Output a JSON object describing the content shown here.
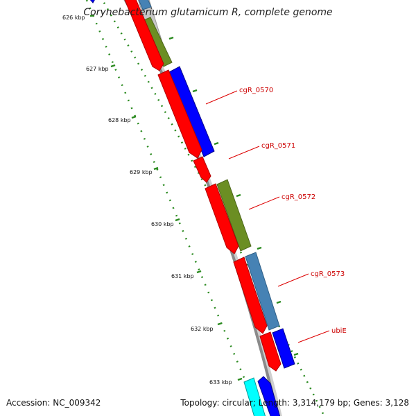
{
  "title": "Corynebacterium glutamicum R, complete genome",
  "footer": {
    "accession": "Accession: NC_009342",
    "summary": "Topology: circular; Length: 3,314,179 bp; Genes: 3,128"
  },
  "colors": {
    "backbone": "#8a8a8a",
    "tick": "#2a8a1f",
    "label_line": "#dd0000",
    "red_gene": "#ff0000",
    "blue_gene": "#0000ff",
    "olive_gene": "#6b8e23",
    "steelblue_gene": "#4682b4",
    "cyan_gene": "#00ffff",
    "gray_gene": "#c8c8c8"
  },
  "ruler": [
    {
      "label": "626 kbp"
    },
    {
      "label": "627 kbp"
    },
    {
      "label": "628 kbp"
    },
    {
      "label": "629 kbp"
    },
    {
      "label": "630 kbp"
    },
    {
      "label": "631 kbp"
    },
    {
      "label": "632 kbp"
    },
    {
      "label": "633 kbp"
    }
  ],
  "gene_labels": [
    {
      "text": "cgR_0570"
    },
    {
      "text": "cgR_0571"
    },
    {
      "text": "cgR_0572"
    },
    {
      "text": "cgR_0573"
    },
    {
      "text": "ubiE"
    }
  ]
}
